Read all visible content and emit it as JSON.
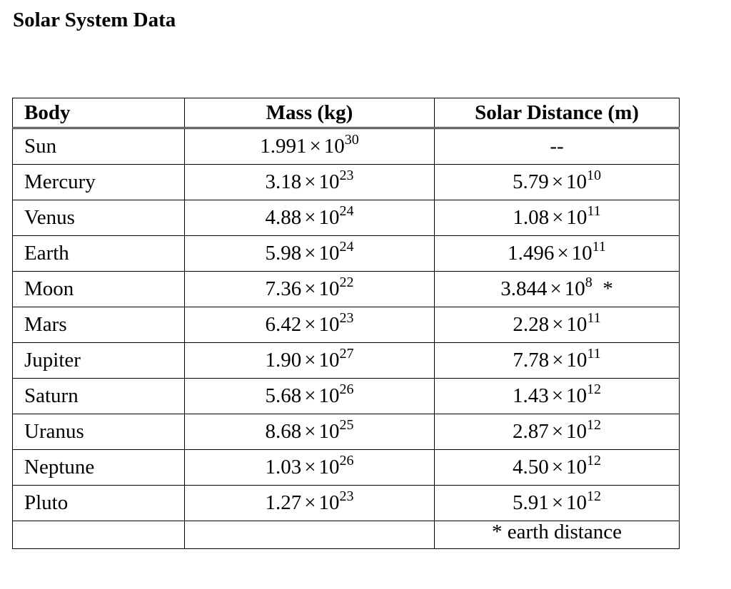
{
  "title": "Solar System Data",
  "columns": [
    "Body",
    "Mass (kg)",
    "Solar Distance (m)"
  ],
  "rows": [
    {
      "body": "Sun",
      "mass": {
        "mantissa": "1.991",
        "exponent": "30"
      },
      "distance": {
        "text": "--"
      }
    },
    {
      "body": "Mercury",
      "mass": {
        "mantissa": "3.18",
        "exponent": "23"
      },
      "distance": {
        "mantissa": "5.79",
        "exponent": "10"
      }
    },
    {
      "body": "Venus",
      "mass": {
        "mantissa": "4.88",
        "exponent": "24"
      },
      "distance": {
        "mantissa": "1.08",
        "exponent": "11"
      }
    },
    {
      "body": "Earth",
      "mass": {
        "mantissa": "5.98",
        "exponent": "24"
      },
      "distance": {
        "mantissa": "1.496",
        "exponent": "11"
      }
    },
    {
      "body": "Moon",
      "mass": {
        "mantissa": "7.36",
        "exponent": "22"
      },
      "distance": {
        "mantissa": "3.844",
        "exponent": "8",
        "suffix": "*"
      }
    },
    {
      "body": "Mars",
      "mass": {
        "mantissa": "6.42",
        "exponent": "23"
      },
      "distance": {
        "mantissa": "2.28",
        "exponent": "11"
      }
    },
    {
      "body": "Jupiter",
      "mass": {
        "mantissa": "1.90",
        "exponent": "27"
      },
      "distance": {
        "mantissa": "7.78",
        "exponent": "11"
      }
    },
    {
      "body": "Saturn",
      "mass": {
        "mantissa": "5.68",
        "exponent": "26"
      },
      "distance": {
        "mantissa": "1.43",
        "exponent": "12"
      }
    },
    {
      "body": "Uranus",
      "mass": {
        "mantissa": "8.68",
        "exponent": "25"
      },
      "distance": {
        "mantissa": "2.87",
        "exponent": "12"
      }
    },
    {
      "body": "Neptune",
      "mass": {
        "mantissa": "1.03",
        "exponent": "26"
      },
      "distance": {
        "mantissa": "4.50",
        "exponent": "12"
      }
    },
    {
      "body": "Pluto",
      "mass": {
        "mantissa": "1.27",
        "exponent": "23"
      },
      "distance": {
        "mantissa": "5.91",
        "exponent": "12"
      }
    }
  ],
  "times_symbol": "×",
  "base": "10",
  "footnote": "* earth distance"
}
